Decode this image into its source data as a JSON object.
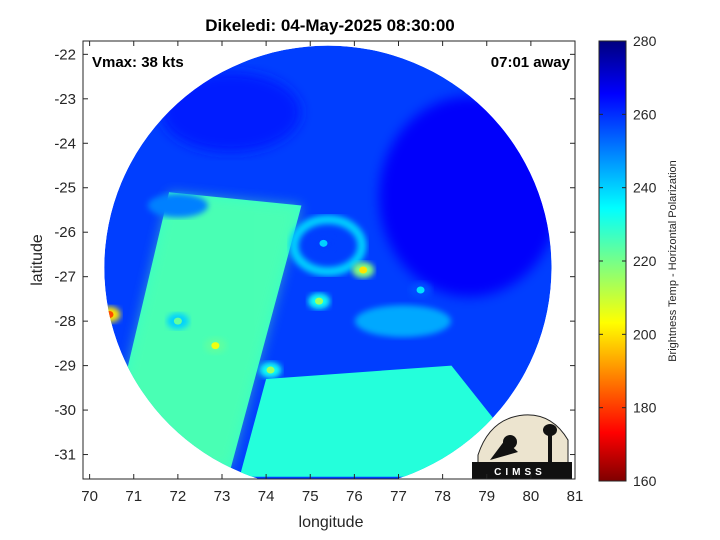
{
  "chart_data": {
    "type": "heatmap",
    "title": "Dikeledi: 04-May-2025 08:30:00",
    "xlabel": "longitude",
    "ylabel": "latitude",
    "xlim": [
      69.85,
      81.0
    ],
    "ylim": [
      -31.55,
      -21.7
    ],
    "xticks": [
      70,
      71,
      72,
      73,
      74,
      75,
      76,
      77,
      78,
      79,
      80,
      81
    ],
    "yticks": [
      -22,
      -23,
      -24,
      -25,
      -26,
      -27,
      -28,
      -29,
      -30,
      -31
    ],
    "vmax_label": "Vmax: 38 kts",
    "time_label": "07:01 away",
    "colorbar": {
      "label": "Brightness Temp - Horizontal Polarization",
      "range": [
        160,
        280
      ],
      "ticks": [
        160,
        180,
        200,
        220,
        240,
        260,
        280
      ],
      "colormap": "jet"
    },
    "swath": {
      "center": [
        75.4,
        -26.8
      ],
      "radius_deg": 5.6
    },
    "background_value": 258,
    "regions": [
      {
        "name": "left swath",
        "lon": [
          70.3,
          74.8
        ],
        "lat": [
          -31.3,
          -25.1
        ],
        "value": 228
      },
      {
        "name": "lower swath",
        "lon": [
          74.0,
          78.2
        ],
        "lat": [
          -31.5,
          -29.0
        ],
        "value": 230
      }
    ],
    "hotspots": [
      {
        "lon": 70.45,
        "lat": -27.85,
        "value": 182
      },
      {
        "lon": 72.85,
        "lat": -28.55,
        "value": 205
      },
      {
        "lon": 76.2,
        "lat": -26.85,
        "value": 200
      },
      {
        "lon": 75.2,
        "lat": -27.55,
        "value": 215
      },
      {
        "lon": 77.5,
        "lat": -27.3,
        "value": 238
      },
      {
        "lon": 74.1,
        "lat": -29.1,
        "value": 215
      },
      {
        "lon": 75.3,
        "lat": -26.25,
        "value": 240
      },
      {
        "lon": 72.0,
        "lat": -28.0,
        "value": 222
      }
    ],
    "logo_text": "CIMSS",
    "grid": false
  }
}
